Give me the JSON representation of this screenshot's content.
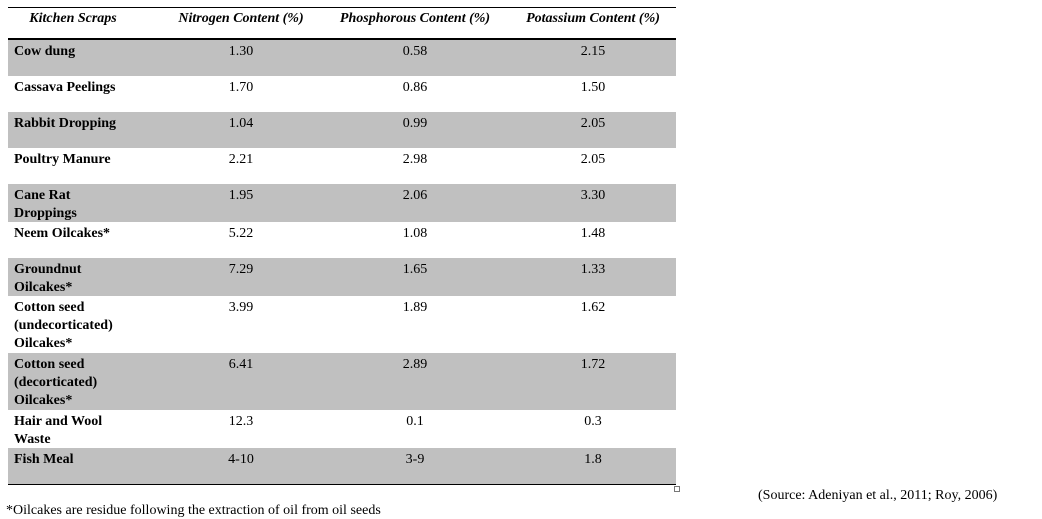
{
  "table": {
    "header": [
      "Kitchen Scraps",
      "Nitrogen Content (%)",
      "Phosphorous Content (%)",
      "Potassium Content (%)"
    ],
    "rows": [
      [
        "Cow dung",
        "1.30",
        "0.58",
        "2.15"
      ],
      [
        "Cassava Peelings",
        "1.70",
        "0.86",
        "1.50"
      ],
      [
        "Rabbit Dropping",
        "1.04",
        "0.99",
        "2.05"
      ],
      [
        "Poultry Manure",
        "2.21",
        "2.98",
        "2.05"
      ],
      [
        "Cane Rat Droppings",
        "1.95",
        "2.06",
        "3.30"
      ],
      [
        "Neem Oilcakes*",
        "5.22",
        "1.08",
        "1.48"
      ],
      [
        "Groundnut Oilcakes*",
        "7.29",
        "1.65",
        "1.33"
      ],
      [
        "Cotton seed (undecorticated) Oilcakes*",
        "3.99",
        "1.89",
        "1.62"
      ],
      [
        "Cotton seed (decorticated) Oilcakes*",
        "6.41",
        "2.89",
        "1.72"
      ],
      [
        "Hair and Wool Waste",
        "12.3",
        "0.1",
        "0.3"
      ],
      [
        "Fish Meal",
        "4-10",
        "3-9",
        "1.8"
      ]
    ]
  },
  "source": "(Source: Adeniyan et al., 2011; Roy, 2006)",
  "footnote": "*Oilcakes are residue following the extraction of oil from oil seeds"
}
